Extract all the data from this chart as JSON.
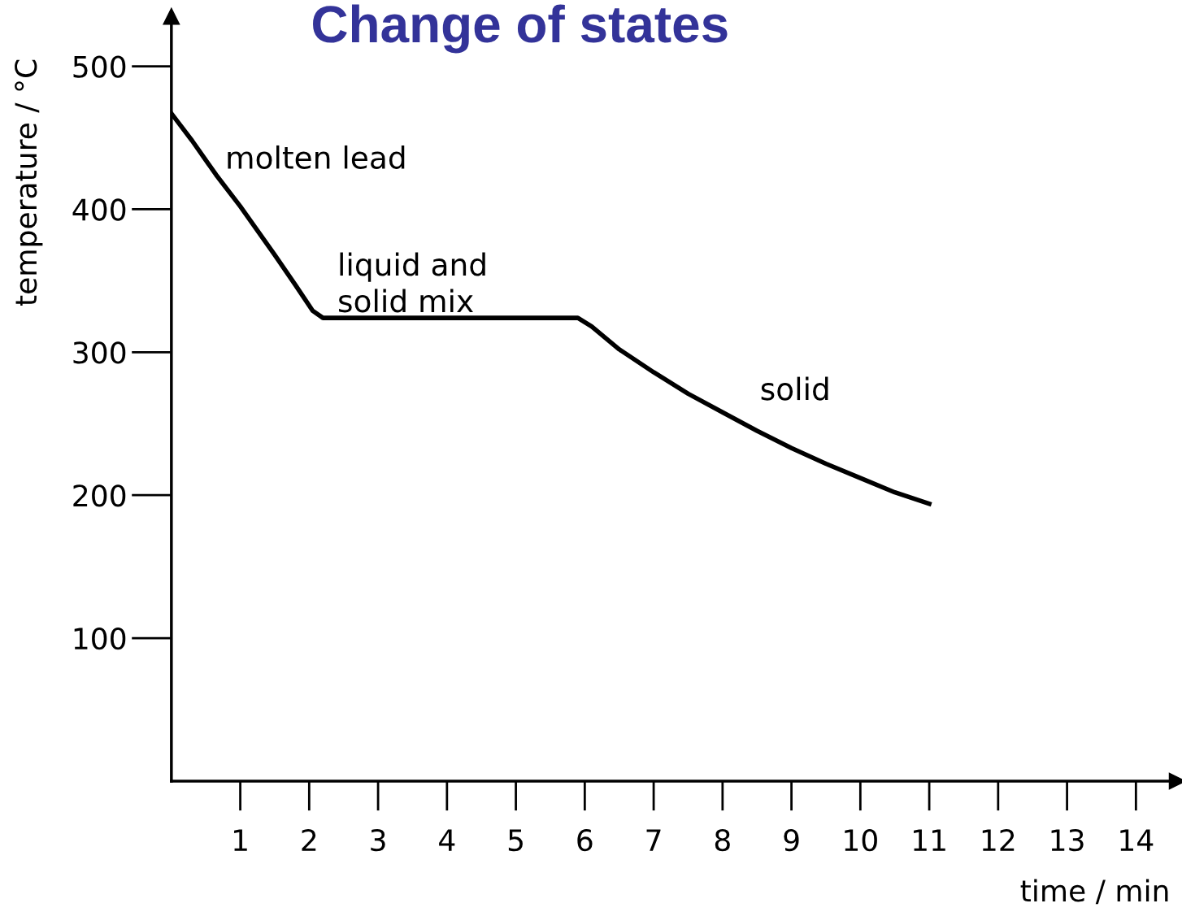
{
  "chart_data": {
    "type": "line",
    "title": "Change of states",
    "xlabel": "time / min",
    "ylabel": "temperature / °C",
    "x": [
      0,
      0.3,
      0.65,
      1,
      1.5,
      1.8,
      2.05,
      2.2,
      4,
      5.9,
      6.1,
      6.5,
      7,
      7.5,
      8,
      8.5,
      9,
      9.5,
      10,
      10.5,
      11
    ],
    "series": [
      {
        "color": "#000000",
        "values": [
          467,
          448,
          424,
          402,
          368,
          347,
          329,
          324,
          324,
          324,
          318,
          302,
          286,
          271,
          258,
          245,
          233,
          222,
          212,
          202,
          194
        ]
      }
    ],
    "xlim": [
      0,
      14.6
    ],
    "ylim": [
      0,
      535
    ],
    "xticks": [
      1,
      2,
      3,
      4,
      5,
      6,
      7,
      8,
      9,
      10,
      11,
      12,
      13,
      14
    ],
    "yticks": [
      100,
      200,
      300,
      400,
      500
    ],
    "annotations": [
      {
        "text": "molten lead",
        "x": 0.65,
        "y": 424
      },
      "liquid and\nsolid mix",
      "solid"
    ],
    "grid": false,
    "legend": false,
    "marker": "none",
    "line_style": "solid"
  }
}
